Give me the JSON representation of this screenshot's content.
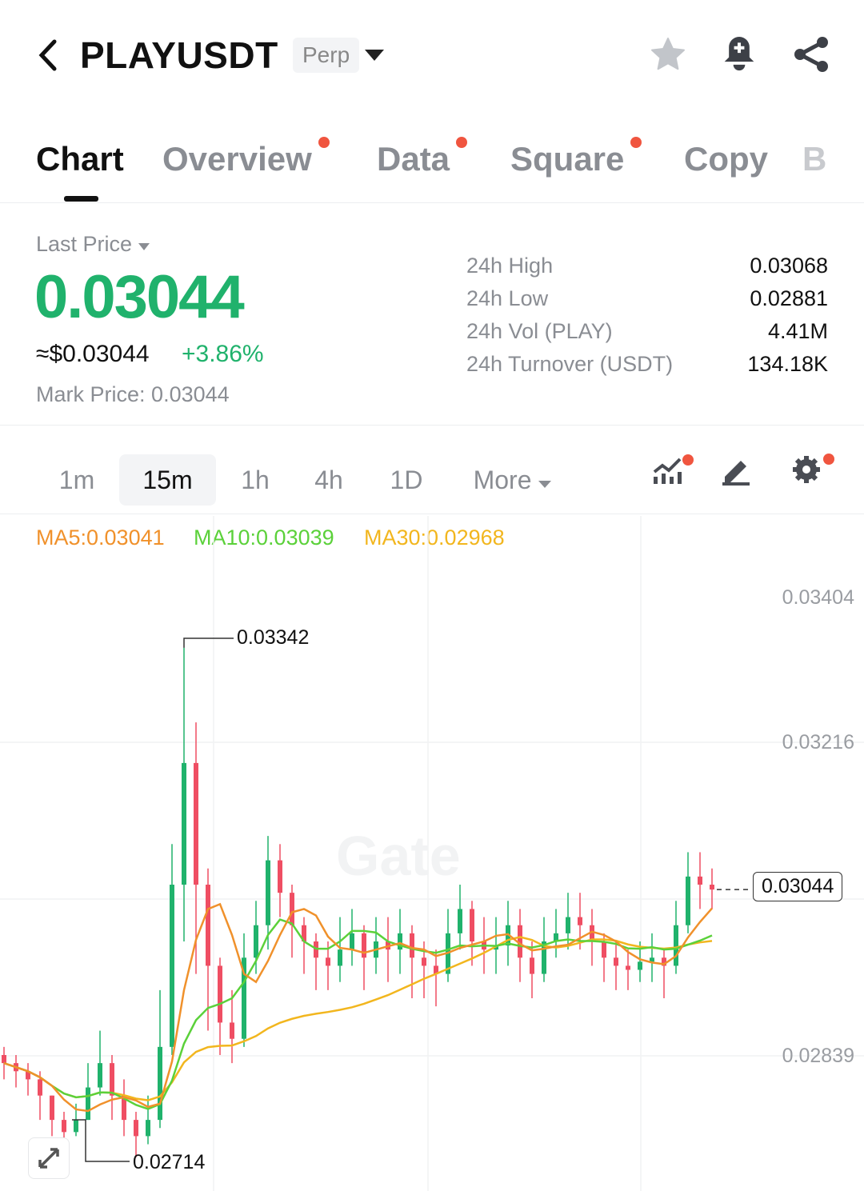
{
  "header": {
    "title": "PLAYUSDT",
    "badge": "Perp",
    "icons": [
      "back-chevron-icon",
      "dropdown-caret-icon",
      "star-icon",
      "alert-bell-plus-icon",
      "share-icon"
    ]
  },
  "tabs": [
    {
      "label": "Chart",
      "active": true
    },
    {
      "label": "Overview",
      "dot": true
    },
    {
      "label": "Data",
      "dot": true
    },
    {
      "label": "Square",
      "dot": true
    },
    {
      "label": "Copy"
    },
    {
      "label": "B"
    }
  ],
  "price": {
    "label": "Last Price",
    "value": "0.03044",
    "usd": "≈$0.03044",
    "change": "+3.86%",
    "mark_label": "Mark Price:",
    "mark_value": "0.03044",
    "color": "#20b26c"
  },
  "stats": [
    {
      "label": "24h High",
      "value": "0.03068"
    },
    {
      "label": "24h Low",
      "value": "0.02881"
    },
    {
      "label": "24h Vol (PLAY)",
      "value": "4.41M"
    },
    {
      "label": "24h Turnover (USDT)",
      "value": "134.18K"
    }
  ],
  "timeframes": [
    "1m",
    "15m",
    "1h",
    "4h",
    "1D",
    "More"
  ],
  "selected_timeframe": "15m",
  "ma_legend": {
    "ma5": "MA5:0.03041",
    "ma10": "MA10:0.03039",
    "ma30": "MA30:0.02968"
  },
  "colors": {
    "up": "#20b26c",
    "down": "#ef4e63",
    "ma5": "#f0912b",
    "ma10": "#5bd13a",
    "ma30": "#f2b61e"
  },
  "watermark": "Gate",
  "chart_data": {
    "type": "candlestick",
    "y_ticks": [
      "0.03404",
      "0.03216",
      "0.02839"
    ],
    "high_label": "0.03342",
    "low_label": "0.02714",
    "last_label": "0.03044",
    "close": [
      0.0283,
      0.0282,
      0.0281,
      0.0279,
      0.0276,
      0.02745,
      0.0276,
      0.028,
      0.0283,
      0.0279,
      0.0276,
      0.0274,
      0.0276,
      0.0285,
      0.0305,
      0.032,
      0.0305,
      0.0295,
      0.0288,
      0.0286,
      0.0296,
      0.03,
      0.0308,
      0.0304,
      0.03,
      0.0298,
      0.0296,
      0.0295,
      0.0297,
      0.0299,
      0.0296,
      0.0298,
      0.0297,
      0.0299,
      0.0296,
      0.0295,
      0.0294,
      0.0299,
      0.0302,
      0.0298,
      0.0297,
      0.02975,
      0.03,
      0.0296,
      0.0294,
      0.0298,
      0.0299,
      0.0301,
      0.03,
      0.0298,
      0.0296,
      0.0295,
      0.02945,
      0.02955,
      0.0296,
      0.0295,
      0.03,
      0.0306,
      0.0305,
      0.03044
    ],
    "high": [
      0.0285,
      0.0284,
      0.0283,
      0.0282,
      0.0279,
      0.0277,
      0.0278,
      0.0283,
      0.0287,
      0.0284,
      0.0281,
      0.0277,
      0.0279,
      0.0292,
      0.031,
      0.03342,
      0.0325,
      0.0307,
      0.0296,
      0.0292,
      0.0299,
      0.0303,
      0.0311,
      0.031,
      0.0305,
      0.0301,
      0.0299,
      0.0298,
      0.0301,
      0.0302,
      0.03,
      0.0301,
      0.0301,
      0.0302,
      0.03,
      0.0298,
      0.0297,
      0.0302,
      0.0305,
      0.0303,
      0.0301,
      0.0301,
      0.0303,
      0.0302,
      0.0298,
      0.0301,
      0.0302,
      0.0304,
      0.0304,
      0.0302,
      0.0299,
      0.0298,
      0.0297,
      0.0298,
      0.0299,
      0.0297,
      0.0303,
      0.0309,
      0.0309,
      0.0307
    ],
    "low": [
      0.0281,
      0.028,
      0.0279,
      0.0276,
      0.0274,
      0.0273,
      0.0274,
      0.0276,
      0.0279,
      0.0276,
      0.0274,
      0.02714,
      0.0273,
      0.0275,
      0.0284,
      0.0298,
      0.0294,
      0.0287,
      0.0284,
      0.0283,
      0.0285,
      0.0294,
      0.0297,
      0.0301,
      0.0296,
      0.0294,
      0.0292,
      0.0292,
      0.0293,
      0.0295,
      0.0292,
      0.0294,
      0.0293,
      0.0294,
      0.0291,
      0.0291,
      0.029,
      0.0293,
      0.0297,
      0.0295,
      0.0294,
      0.0294,
      0.0295,
      0.0293,
      0.0291,
      0.0293,
      0.0296,
      0.0297,
      0.0297,
      0.0295,
      0.0293,
      0.0292,
      0.0292,
      0.0293,
      0.0293,
      0.0291,
      0.0294,
      0.0299,
      0.0302,
      0.0302
    ]
  }
}
